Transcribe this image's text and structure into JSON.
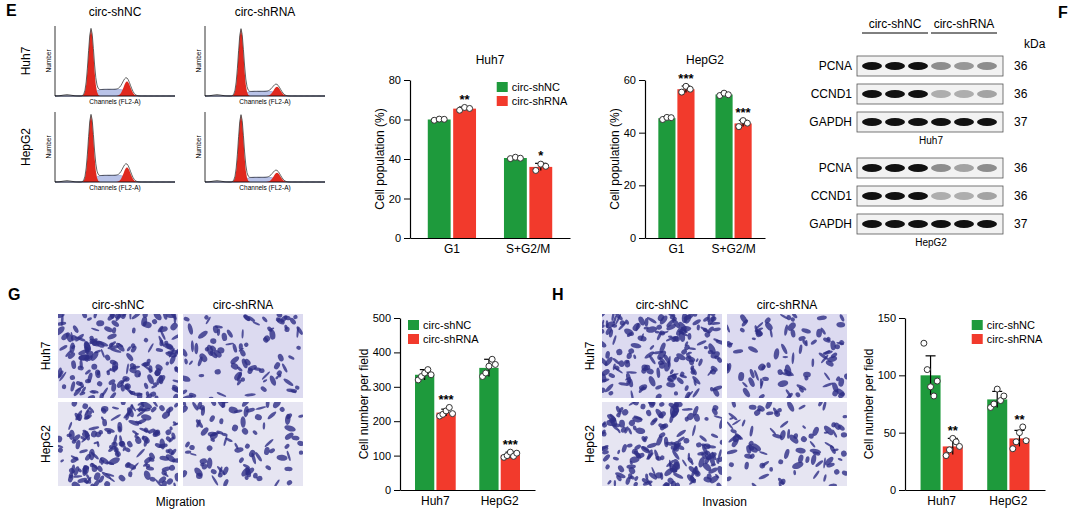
{
  "chart_data": [
    {
      "type": "bar",
      "title": "Huh7",
      "y_label": "Cell population (%)",
      "categories": [
        "G1",
        "S+G2/M"
      ],
      "series": [
        {
          "name": "circ-shNC",
          "color": "#1e9a3c",
          "values": [
            60,
            40.5
          ],
          "errors": [
            0.4,
            0.6
          ],
          "points": [
            [
              59.6,
              60.2,
              60.1
            ],
            [
              40.2,
              40.9,
              40.4
            ]
          ]
        },
        {
          "name": "circ-shRNA",
          "color": "#f23a2c",
          "values": [
            65.5,
            36
          ],
          "errors": [
            0.8,
            1.8
          ],
          "points": [
            [
              64.7,
              66.1,
              65.6
            ],
            [
              34.2,
              37.4,
              36.3
            ]
          ],
          "significance": [
            "**",
            "*"
          ]
        }
      ],
      "ylim": [
        0,
        80
      ],
      "yticks": [
        0,
        20,
        40,
        60,
        80
      ],
      "legend": "top-right"
    },
    {
      "type": "bar",
      "title": "HepG2",
      "y_label": "Cell population (%)",
      "categories": [
        "G1",
        "S+G2/M"
      ],
      "series": [
        {
          "color": "#1e9a3c",
          "values": [
            45.5,
            54.5
          ],
          "errors": [
            0.6,
            0.6
          ],
          "points": [
            [
              45,
              45.8,
              45.7
            ],
            [
              54.1,
              55,
              54.4
            ]
          ]
        },
        {
          "color": "#f23a2c",
          "values": [
            56.5,
            43.5
          ],
          "errors": [
            1.2,
            1.2
          ],
          "points": [
            [
              55.4,
              57.6,
              56.5
            ],
            [
              42.3,
              44.6,
              43.6
            ]
          ],
          "significance": [
            "***",
            "***"
          ]
        }
      ],
      "ylim": [
        0,
        60
      ],
      "yticks": [
        0,
        20,
        40,
        60
      ]
    },
    {
      "type": "bar",
      "y_label": "Cell number per field",
      "categories": [
        "Huh7",
        "HepG2"
      ],
      "series": [
        {
          "name": "circ-shNC",
          "color": "#1e9a3c",
          "values": [
            335,
            355
          ],
          "errors": [
            15,
            25
          ],
          "points": [
            [
              320,
              330,
              340,
              350,
              335
            ],
            [
              330,
              340,
              360,
              380,
              365
            ]
          ]
        },
        {
          "name": "circ-shRNA",
          "color": "#f23a2c",
          "values": [
            225,
            102
          ],
          "errors": [
            10,
            8
          ],
          "points": [
            [
              215,
              220,
              230,
              240,
              222
            ],
            [
              95,
              100,
              110,
              98,
              107
            ]
          ],
          "significance": [
            "***",
            "***"
          ]
        }
      ],
      "ylim": [
        0,
        500
      ],
      "yticks": [
        0,
        100,
        200,
        300,
        400,
        500
      ],
      "legend": "top-left"
    },
    {
      "type": "bar",
      "y_label": "Cell number per field",
      "categories": [
        "Huh7",
        "HepG2"
      ],
      "series": [
        {
          "name": "circ-shNC",
          "color": "#1e9a3c",
          "values": [
            100,
            79
          ],
          "errors": [
            17,
            7
          ],
          "points": [
            [
              128,
              105,
              90,
              82,
              95
            ],
            [
              72,
              75,
              88,
              78,
              82
            ]
          ]
        },
        {
          "name": "circ-shRNA",
          "color": "#f23a2c",
          "values": [
            38,
            45
          ],
          "errors": [
            7,
            7
          ],
          "points": [
            [
              30,
              35,
              45,
              42,
              38
            ],
            [
              36,
              42,
              50,
              55,
              43
            ]
          ],
          "significance": [
            "**",
            "**"
          ]
        }
      ],
      "ylim": [
        0,
        150
      ],
      "yticks": [
        0,
        50,
        100,
        150
      ],
      "legend": "top-right"
    }
  ],
  "panels": {
    "E": {
      "letter": "E",
      "columns": [
        "circ-shNC",
        "circ-shRNA"
      ],
      "rows": [
        "Huh7",
        "HepG2"
      ],
      "x_label": "Channels (FL2-A)",
      "y_label": "Number"
    },
    "F": {
      "letter": "F",
      "groups": [
        "circ-shNC",
        "circ-shRNA"
      ],
      "unit": "kDa",
      "blots": [
        {
          "cell": "Huh7",
          "bands": [
            {
              "protein": "PCNA",
              "kda": 36,
              "intensity": [
                1,
                1,
                1,
                0.45,
                0.4,
                0.45
              ]
            },
            {
              "protein": "CCND1",
              "kda": 36,
              "intensity": [
                1,
                1,
                1,
                0.3,
                0.3,
                0.35
              ]
            },
            {
              "protein": "GAPDH",
              "kda": 37,
              "intensity": [
                1,
                1,
                1,
                1,
                1,
                1
              ]
            }
          ]
        },
        {
          "cell": "HepG2",
          "bands": [
            {
              "protein": "PCNA",
              "kda": 36,
              "intensity": [
                1,
                1,
                1,
                0.45,
                0.35,
                0.45
              ]
            },
            {
              "protein": "CCND1",
              "kda": 36,
              "intensity": [
                1,
                1,
                1,
                0.3,
                0.3,
                0.35
              ]
            },
            {
              "protein": "GAPDH",
              "kda": 37,
              "intensity": [
                1,
                1,
                1,
                1,
                1,
                1
              ]
            }
          ]
        }
      ]
    },
    "G": {
      "letter": "G",
      "columns": [
        "circ-shNC",
        "circ-shRNA"
      ],
      "rows": [
        "Huh7",
        "HepG2"
      ],
      "caption": "Migration"
    },
    "H": {
      "letter": "H",
      "columns": [
        "circ-shNC",
        "circ-shRNA"
      ],
      "rows": [
        "Huh7",
        "HepG2"
      ],
      "caption": "Invasion"
    }
  }
}
